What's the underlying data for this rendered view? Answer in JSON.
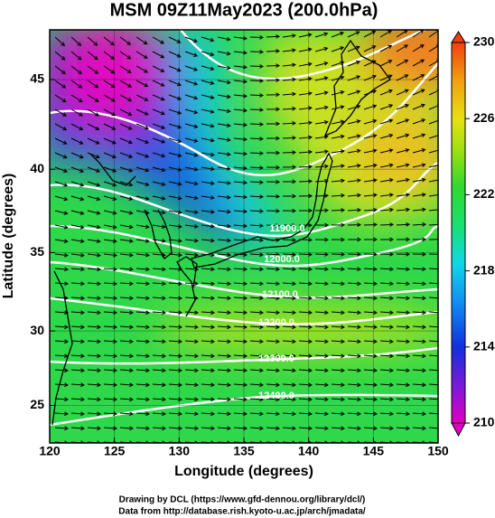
{
  "chart_data": {
    "type": "contour",
    "title": "MSM 09Z11May2023 (200.0hPa)",
    "x_label": "Longitude (degrees)",
    "y_label": "Latitude  (degrees)",
    "xlim": [
      120,
      150
    ],
    "xticks": [
      120,
      125,
      130,
      135,
      140,
      145,
      150
    ],
    "ylim": [
      22.4,
      47.6
    ],
    "yticks": [
      25,
      30,
      35,
      40,
      45
    ],
    "projection": "mercator",
    "grid": true,
    "colorbar": {
      "lim": [
        210,
        230
      ],
      "ticks": [
        210,
        214,
        218,
        222,
        226,
        230
      ]
    },
    "contour_labels": [
      "11900.0",
      "12000.0",
      "12100.0",
      "12200.0",
      "12300.0",
      "12400.0"
    ],
    "credits": [
      "Drawing by DCL (https://www.gfd-dennou.org/library/dcl/)",
      "Data from http://database.rish.kyoto-u.ac.jp/arch/jmadata/"
    ]
  }
}
